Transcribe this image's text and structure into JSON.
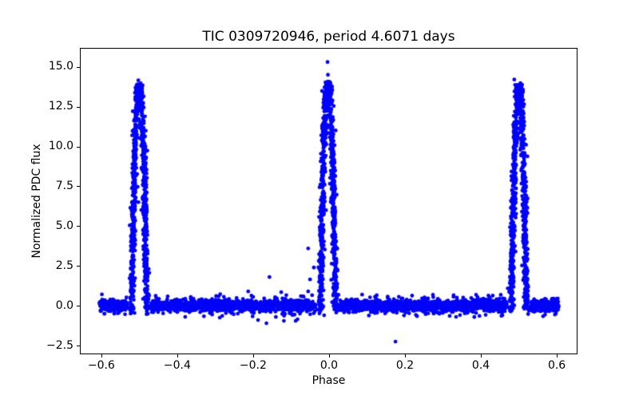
{
  "figure": {
    "background": "#ffffff",
    "axes_color": "#000000"
  },
  "chart_data": {
    "type": "scatter",
    "title": "TIC 0309720946, period 4.6071 days",
    "xlabel": "Phase",
    "ylabel": "Normalized PDC flux",
    "xlim": [
      -0.6565,
      0.6545
    ],
    "ylim": [
      -3.05,
      16.19
    ],
    "grid": false,
    "legend": null,
    "marker": {
      "color": "#0000ff",
      "radius_px": 2.4
    },
    "x_ticks": [
      {
        "value": -0.6,
        "label": "−0.6"
      },
      {
        "value": -0.4,
        "label": "−0.4"
      },
      {
        "value": -0.2,
        "label": "−0.2"
      },
      {
        "value": 0.0,
        "label": "0.0"
      },
      {
        "value": 0.2,
        "label": "0.2"
      },
      {
        "value": 0.4,
        "label": "0.4"
      },
      {
        "value": 0.6,
        "label": "0.6"
      }
    ],
    "y_ticks": [
      {
        "value": 15.0,
        "label": "15.0"
      },
      {
        "value": 12.5,
        "label": "12.5"
      },
      {
        "value": 10.0,
        "label": "10.0"
      },
      {
        "value": 7.5,
        "label": "7.5"
      },
      {
        "value": 5.0,
        "label": "5.0"
      },
      {
        "value": 2.5,
        "label": "2.5"
      },
      {
        "value": 0.0,
        "label": "0.0"
      },
      {
        "value": -2.5,
        "label": "−2.5"
      }
    ],
    "baseline": {
      "phase_range": [
        -0.605,
        0.605
      ],
      "flux_level": 0.0,
      "noise_sigma": 0.15,
      "outlier_sigma": 0.3,
      "outlier_fraction": 0.22,
      "max_abs_flux": 0.72
    },
    "peaks": [
      {
        "center": -0.5,
        "height": 14.0
      },
      {
        "center": -0.003,
        "height": 14.15
      },
      {
        "center": 0.5,
        "height": 14.0
      }
    ],
    "outliers": [
      [
        -0.004,
        15.3
      ],
      [
        -0.003,
        14.5
      ],
      [
        -0.5025,
        14.15
      ],
      [
        0.488,
        14.2
      ],
      [
        -0.008,
        6.0
      ],
      [
        -0.018,
        4.3
      ],
      [
        -0.055,
        3.6
      ],
      [
        -0.04,
        2.4
      ],
      [
        -0.05,
        1.65
      ],
      [
        -0.157,
        1.8
      ],
      [
        -0.126,
        0.85
      ],
      [
        -0.213,
        0.9
      ],
      [
        -0.055,
        0.9
      ],
      [
        -0.067,
        0.57
      ],
      [
        -0.015,
        -0.05
      ],
      [
        -0.013,
        -0.6
      ],
      [
        -0.083,
        -0.85
      ],
      [
        -0.088,
        -0.95
      ],
      [
        -0.119,
        -0.95
      ],
      [
        -0.165,
        -1.1
      ],
      [
        -0.187,
        -0.9
      ],
      [
        -0.288,
        -0.75
      ],
      [
        -0.379,
        -0.7
      ],
      [
        0.175,
        -2.25
      ]
    ],
    "render": {
      "seed": 7,
      "baseline_points": 4300,
      "points_per_peak": 780,
      "apex_points": 150,
      "base_half_width": 0.02,
      "profile_exponent": 0.5,
      "phase_jitter": 0.0032,
      "flux_jitter": 0.12,
      "peak_exclusion_half_width": 0.032
    }
  }
}
